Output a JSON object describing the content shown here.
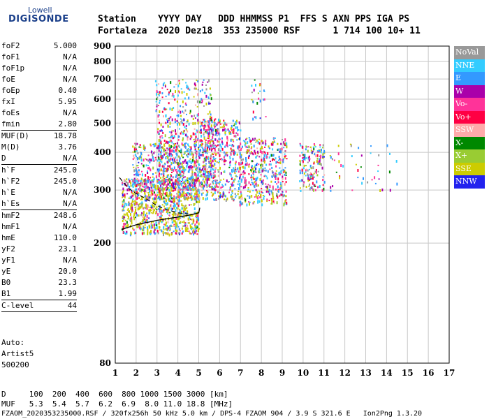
{
  "logo": {
    "line1": "Lowell",
    "line2": "DIGISONDE"
  },
  "header": {
    "row1": "Station    YYYY DAY   DDD HHMMSS P1  FFS S AXN PPS IGA PS",
    "row2": "Fortaleza  2020 Dez18  353 235000 RSF      1 714 100 10+ 11"
  },
  "params": [
    {
      "label": "foF2",
      "value": "5.000"
    },
    {
      "label": "foF1",
      "value": "N/A"
    },
    {
      "label": "foF1p",
      "value": "N/A"
    },
    {
      "label": "foE",
      "value": "N/A"
    },
    {
      "label": "foEp",
      "value": "0.40"
    },
    {
      "label": "fxI",
      "value": "5.95"
    },
    {
      "label": "foEs",
      "value": "N/A"
    },
    {
      "label": "fmin",
      "value": "2.80",
      "sep_after": true
    },
    {
      "label": "MUF(D)",
      "value": "18.78"
    },
    {
      "label": "M(D)",
      "value": "3.76"
    },
    {
      "label": "D",
      "value": "N/A",
      "sep_after": true
    },
    {
      "label": "h`F",
      "value": "245.0"
    },
    {
      "label": "h`F2",
      "value": "245.0"
    },
    {
      "label": "h`E",
      "value": "N/A"
    },
    {
      "label": "h`Es",
      "value": "N/A",
      "sep_after": true
    },
    {
      "label": "hmF2",
      "value": "248.6"
    },
    {
      "label": "hmF1",
      "value": "N/A"
    },
    {
      "label": "hmE",
      "value": "110.0"
    },
    {
      "label": "yF2",
      "value": "23.1"
    },
    {
      "label": "yF1",
      "value": "N/A"
    },
    {
      "label": "yE",
      "value": "20.0"
    },
    {
      "label": "B0",
      "value": "23.3"
    },
    {
      "label": "B1",
      "value": "1.99",
      "sep_after": true
    },
    {
      "label": "C-level",
      "value": "44",
      "sep_after": true
    }
  ],
  "auto": {
    "line1": "Auto:",
    "line2": "Artist5",
    "line3": "500200"
  },
  "legend": [
    {
      "label": "NoVal",
      "color": "#999999"
    },
    {
      "label": "NNE",
      "color": "#33ccff"
    },
    {
      "label": "E",
      "color": "#3399ff"
    },
    {
      "label": "W",
      "color": "#aa00aa"
    },
    {
      "label": "Vo-",
      "color": "#ff3399"
    },
    {
      "label": "Vo+",
      "color": "#ff0044"
    },
    {
      "label": "SSW",
      "color": "#ffaaaa"
    },
    {
      "label": "X-",
      "color": "#008800"
    },
    {
      "label": "X+",
      "color": "#99cc33"
    },
    {
      "label": "SSE",
      "color": "#cccc00"
    },
    {
      "label": "NNW",
      "color": "#2222ee"
    }
  ],
  "bottom": {
    "d_row": "D     100  200  400  600  800 1000 1500 3000 [km]",
    "muf_row": "MUF   5.3  5.4  5.7  6.2  6.9  8.0 11.0 18.8 [MHz]",
    "footer": "FZAOM_2020353235000.RSF / 320fx256h 50 kHz 5.0 km / DPS-4 FZAOM 904 / 3.9 S 321.6 E   Ion2Png 1.3.20"
  },
  "chart_data": {
    "type": "scatter",
    "title": "",
    "xlabel": "",
    "ylabel": "",
    "xlim": [
      1,
      17
    ],
    "ylim": [
      80,
      900
    ],
    "x_ticks": [
      1,
      2,
      3,
      4,
      5,
      6,
      7,
      8,
      9,
      10,
      11,
      12,
      13,
      14,
      15,
      16,
      17
    ],
    "y_ticks": [
      80,
      200,
      300,
      400,
      500,
      600,
      700,
      800,
      900
    ],
    "grid": true,
    "y_scale": "log",
    "trace_curve": [
      [
        1.3,
        222
      ],
      [
        2,
        230
      ],
      [
        3,
        238
      ],
      [
        4,
        244
      ],
      [
        4.6,
        248
      ],
      [
        5.0,
        252
      ],
      [
        5.05,
        262
      ]
    ],
    "trace_curve_dashed": [
      [
        1.2,
        330
      ],
      [
        1.6,
        305
      ],
      [
        2,
        292
      ],
      [
        2.5,
        280
      ],
      [
        3,
        266
      ],
      [
        3.5,
        258
      ],
      [
        4,
        252
      ],
      [
        4.5,
        250
      ]
    ],
    "clusters": [
      {
        "xmin": 1.3,
        "xmax": 5.0,
        "ymin": 215,
        "ymax": 330,
        "n": 900
      },
      {
        "xmin": 1.8,
        "xmax": 5.0,
        "ymin": 280,
        "ymax": 430,
        "n": 500
      },
      {
        "xmin": 3.0,
        "xmax": 5.8,
        "ymin": 300,
        "ymax": 520,
        "n": 500
      },
      {
        "xmin": 2.9,
        "xmax": 5.6,
        "ymin": 500,
        "ymax": 700,
        "n": 160
      },
      {
        "xmin": 5.0,
        "xmax": 7.0,
        "ymin": 280,
        "ymax": 520,
        "n": 450
      },
      {
        "xmin": 6.9,
        "xmax": 9.2,
        "ymin": 270,
        "ymax": 450,
        "n": 450
      },
      {
        "xmin": 7.5,
        "xmax": 8.2,
        "ymin": 520,
        "ymax": 700,
        "n": 25
      },
      {
        "xmin": 9.8,
        "xmax": 11.0,
        "ymin": 300,
        "ymax": 430,
        "n": 160
      },
      {
        "xmin": 11.0,
        "xmax": 14.5,
        "ymin": 300,
        "ymax": 430,
        "n": 45
      }
    ]
  }
}
